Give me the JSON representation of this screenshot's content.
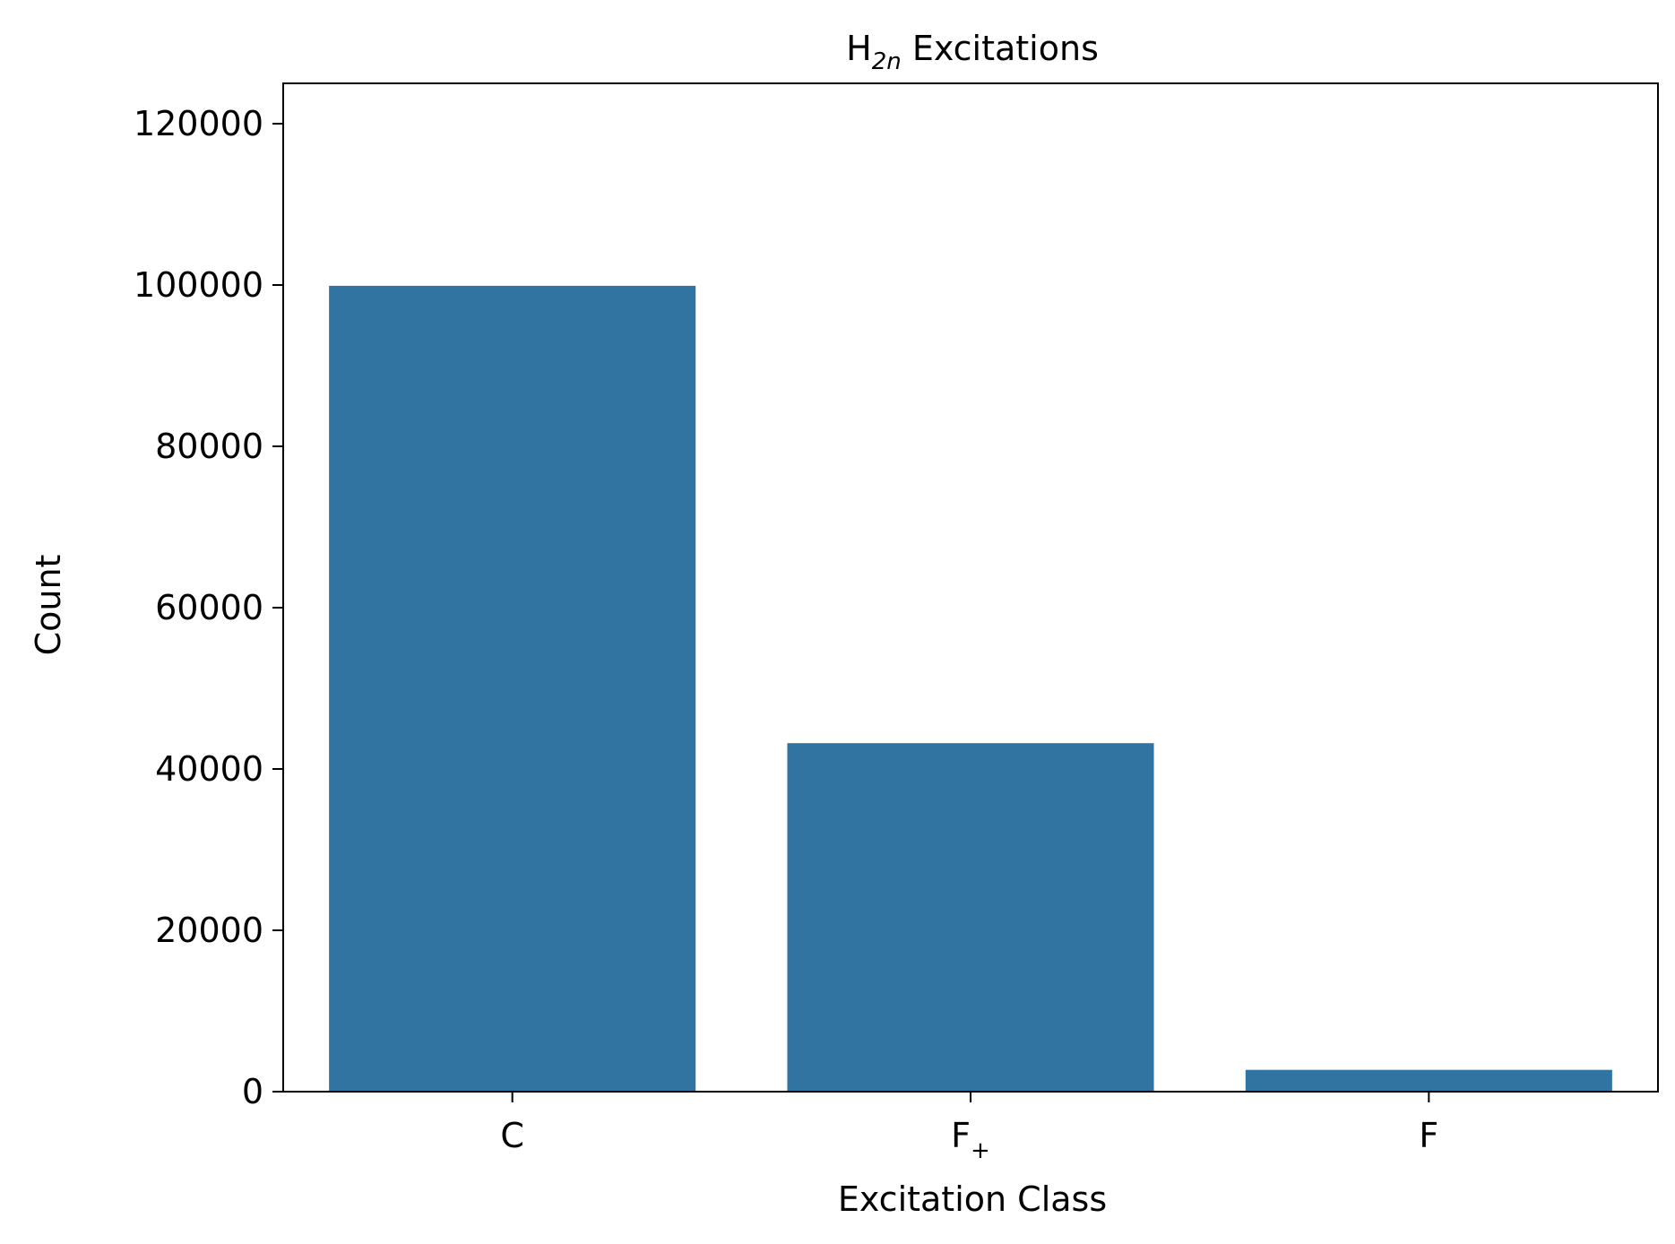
{
  "chart_data": {
    "type": "bar",
    "title": {
      "main": "H",
      "subscript": "2n",
      "rest": " Excitations"
    },
    "xlabel": "Excitation Class",
    "ylabel": "Count",
    "categories": [
      {
        "main": "C",
        "subscript": ""
      },
      {
        "main": "F",
        "subscript": "+"
      },
      {
        "main": "F",
        "subscript": ""
      }
    ],
    "values": [
      99900,
      43200,
      2700
    ],
    "ylim": [
      0,
      125000
    ],
    "yticks": [
      0,
      20000,
      40000,
      60000,
      80000,
      100000,
      120000
    ],
    "grid": false,
    "legend": "none",
    "bar_color": "#3274a1"
  }
}
